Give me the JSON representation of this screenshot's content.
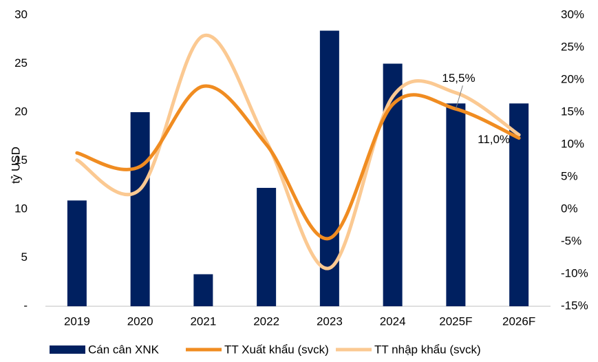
{
  "chart_data": {
    "type": "bar_line",
    "y_label": "tỷ USD",
    "categories": [
      "2019",
      "2020",
      "2021",
      "2022",
      "2023",
      "2024",
      "2025F",
      "2026F"
    ],
    "series": [
      {
        "name": "Cán cân XNK",
        "type": "bar",
        "color": "#002060",
        "values": [
          10.9,
          20.0,
          3.3,
          12.2,
          28.4,
          25.0,
          20.9,
          20.9
        ]
      },
      {
        "name": "TT Xuất khẩu (svck)",
        "type": "line",
        "axis": "y2",
        "color": "#f08c21",
        "values": [
          8.7,
          6.6,
          19.0,
          10.0,
          -4.5,
          16.2,
          15.5,
          11.0
        ],
        "value_labels": [
          null,
          null,
          null,
          null,
          null,
          null,
          "15,5%",
          "11,0%"
        ]
      },
      {
        "name": "TT nhập khẩu (svck)",
        "type": "line",
        "axis": "y2",
        "color": "#fbc992",
        "values": [
          7.6,
          3.1,
          26.8,
          10.5,
          -9.1,
          17.4,
          18.0,
          11.5
        ]
      }
    ],
    "ylim": [
      0,
      30
    ],
    "yticks": [
      {
        "value": 0,
        "label": "-"
      },
      5,
      10,
      15,
      20,
      25,
      30
    ],
    "y2lim": [
      -15,
      30
    ],
    "y2ticks": [
      {
        "value": -15,
        "label": "-15%"
      },
      {
        "value": -10,
        "label": "-10%"
      },
      {
        "value": -5,
        "label": "-5%"
      },
      {
        "value": 0,
        "label": "0%"
      },
      {
        "value": 5,
        "label": "5%"
      },
      {
        "value": 10,
        "label": "10%"
      },
      {
        "value": 15,
        "label": "15%"
      },
      {
        "value": 20,
        "label": "20%"
      },
      {
        "value": 25,
        "label": "25%"
      },
      {
        "value": 30,
        "label": "30%"
      }
    ],
    "legend": "bottom"
  }
}
